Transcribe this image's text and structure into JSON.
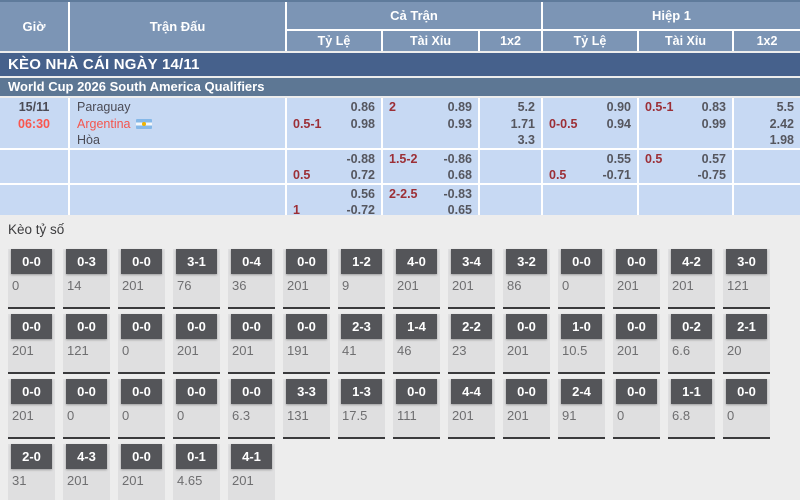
{
  "header": {
    "col_time": "Giờ",
    "col_match": "Trận Đấu",
    "col_fulltime": "Cả Trận",
    "col_firsthalf": "Hiệp 1",
    "sub_handicap": "Tỷ Lệ",
    "sub_overunder": "Tài Xỉu",
    "sub_1x2": "1x2"
  },
  "banner": "KÈO NHÀ CÁI NGÀY 14/11",
  "league": "World Cup 2026 South America Qualifiers",
  "match": {
    "date": "15/11",
    "time": "06:30",
    "home": "Paraguay",
    "away": "Argentina",
    "draw": "Hòa"
  },
  "colors": {
    "header_blue": "#7c95b5",
    "banner_blue": "#46618c",
    "league_blue": "#5d7794",
    "row_blue": "#c7d9f3",
    "handicap_red": "#9c2f36",
    "time_red": "#fa564e",
    "score_box_gray": "#545559"
  },
  "odds_rows": [
    {
      "ft_hdp": {
        "l1": "",
        "v1": "0.86",
        "l2": "0.5-1",
        "v2": "0.98"
      },
      "ft_ou": {
        "l1": "2",
        "v1": "0.89",
        "l2": "",
        "v2": "0.93"
      },
      "ft_1x2": [
        "5.2",
        "1.71",
        "3.3"
      ],
      "h1_hdp": {
        "l1": "",
        "v1": "0.90",
        "l2": "0-0.5",
        "v2": "0.94"
      },
      "h1_ou": {
        "l1": "0.5-1",
        "v1": "0.83",
        "l2": "",
        "v2": "0.99"
      },
      "h1_1x2": [
        "5.5",
        "2.42",
        "1.98"
      ]
    },
    {
      "ft_hdp": {
        "l1": "",
        "v1": "-0.88",
        "l2": "0.5",
        "v2": "0.72"
      },
      "ft_ou": {
        "l1": "1.5-2",
        "v1": "-0.86",
        "l2": "",
        "v2": "0.68"
      },
      "ft_1x2": [],
      "h1_hdp": {
        "l1": "",
        "v1": "0.55",
        "l2": "0.5",
        "v2": "-0.71"
      },
      "h1_ou": {
        "l1": "0.5",
        "v1": "0.57",
        "l2": "",
        "v2": "-0.75"
      },
      "h1_1x2": []
    },
    {
      "ft_hdp": {
        "l1": "",
        "v1": "0.56",
        "l2": "1",
        "v2": "-0.72"
      },
      "ft_ou": {
        "l1": "2-2.5",
        "v1": "-0.83",
        "l2": "",
        "v2": "0.65"
      },
      "ft_1x2": [],
      "h1_hdp": {
        "l1": "",
        "v1": "",
        "l2": "",
        "v2": ""
      },
      "h1_ou": {
        "l1": "",
        "v1": "",
        "l2": "",
        "v2": ""
      },
      "h1_1x2": []
    }
  ],
  "score_section": {
    "title": "Kèo tỷ số",
    "rows": [
      [
        {
          "score": "0-0",
          "odd": "0"
        },
        {
          "score": "0-3",
          "odd": "14"
        },
        {
          "score": "0-0",
          "odd": "201"
        },
        {
          "score": "3-1",
          "odd": "76"
        },
        {
          "score": "0-4",
          "odd": "36"
        },
        {
          "score": "0-0",
          "odd": "201"
        },
        {
          "score": "1-2",
          "odd": "9"
        },
        {
          "score": "4-0",
          "odd": "201"
        },
        {
          "score": "3-4",
          "odd": "201"
        },
        {
          "score": "3-2",
          "odd": "86"
        },
        {
          "score": "0-0",
          "odd": "0"
        },
        {
          "score": "0-0",
          "odd": "201"
        },
        {
          "score": "4-2",
          "odd": "201"
        },
        {
          "score": "3-0",
          "odd": "121"
        }
      ],
      [
        {
          "score": "0-0",
          "odd": "201"
        },
        {
          "score": "0-0",
          "odd": "121"
        },
        {
          "score": "0-0",
          "odd": "0"
        },
        {
          "score": "0-0",
          "odd": "201"
        },
        {
          "score": "0-0",
          "odd": "201"
        },
        {
          "score": "0-0",
          "odd": "191"
        },
        {
          "score": "2-3",
          "odd": "41"
        },
        {
          "score": "1-4",
          "odd": "46"
        },
        {
          "score": "2-2",
          "odd": "23"
        },
        {
          "score": "0-0",
          "odd": "201"
        },
        {
          "score": "1-0",
          "odd": "10.5"
        },
        {
          "score": "0-0",
          "odd": "201"
        },
        {
          "score": "0-2",
          "odd": "6.6"
        },
        {
          "score": "2-1",
          "odd": "20"
        }
      ],
      [
        {
          "score": "0-0",
          "odd": "201"
        },
        {
          "score": "0-0",
          "odd": "0"
        },
        {
          "score": "0-0",
          "odd": "0"
        },
        {
          "score": "0-0",
          "odd": "0"
        },
        {
          "score": "0-0",
          "odd": "6.3"
        },
        {
          "score": "3-3",
          "odd": "131"
        },
        {
          "score": "1-3",
          "odd": "17.5"
        },
        {
          "score": "0-0",
          "odd": "111"
        },
        {
          "score": "4-4",
          "odd": "201"
        },
        {
          "score": "0-0",
          "odd": "201"
        },
        {
          "score": "2-4",
          "odd": "91"
        },
        {
          "score": "0-0",
          "odd": "0"
        },
        {
          "score": "1-1",
          "odd": "6.8"
        },
        {
          "score": "0-0",
          "odd": "0"
        }
      ],
      [
        {
          "score": "2-0",
          "odd": "31"
        },
        {
          "score": "4-3",
          "odd": "201"
        },
        {
          "score": "0-0",
          "odd": "201"
        },
        {
          "score": "0-1",
          "odd": "4.65"
        },
        {
          "score": "4-1",
          "odd": "201"
        }
      ]
    ]
  }
}
